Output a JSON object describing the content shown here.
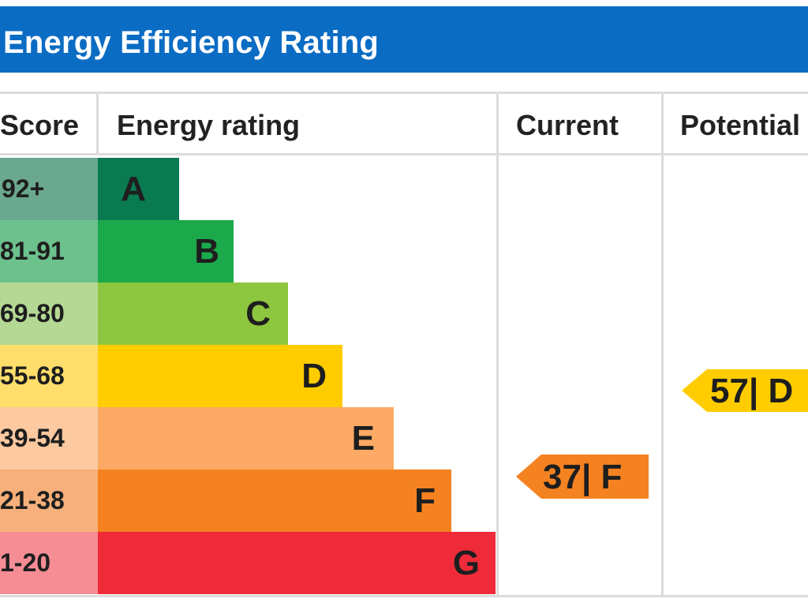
{
  "title": "Energy Efficiency Rating",
  "columns": {
    "score": "Score",
    "rating": "Energy rating",
    "current": "Current",
    "potential": "Potential"
  },
  "chart_data": {
    "type": "bar",
    "title": "Energy Efficiency Rating",
    "categories": [
      "A",
      "B",
      "C",
      "D",
      "E",
      "F",
      "G"
    ],
    "score_ranges": [
      "92+",
      "81-91",
      "69-80",
      "55-68",
      "39-54",
      "21-38",
      "1-20"
    ],
    "band_min_score": [
      92,
      81,
      69,
      55,
      39,
      21,
      1
    ],
    "band_colors": [
      "#0a7a50",
      "#1ba94c",
      "#8dc63f",
      "#ffcc00",
      "#fcaa65",
      "#f48221",
      "#ef2b3a"
    ],
    "score_bg_colors": [
      "#6aa88f",
      "#6cc18d",
      "#b5d995",
      "#ffde6b",
      "#fcc9a0",
      "#f7b07b",
      "#f68d95"
    ],
    "current": {
      "value": 37,
      "band": "F",
      "label": "37| F",
      "color": "#f48221"
    },
    "potential": {
      "value": 57,
      "band": "D",
      "label": "57| D",
      "color": "#ffcc00"
    }
  }
}
